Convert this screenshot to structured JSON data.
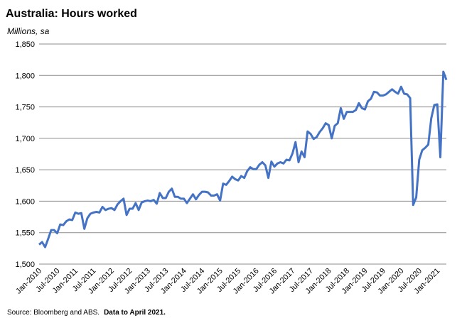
{
  "chart_data": {
    "type": "line",
    "title": "Australia: Hours worked",
    "y_label": "Millions, sa",
    "source": "Source: Bloomberg and ABS.",
    "note": "Data to April 2021.",
    "color": "#4472c4",
    "grid": true,
    "ylim": [
      1500,
      1850
    ],
    "yticks": [
      {
        "value": 1500,
        "label": "1,500"
      },
      {
        "value": 1550,
        "label": "1,550"
      },
      {
        "value": 1600,
        "label": "1,600"
      },
      {
        "value": 1650,
        "label": "1,650"
      },
      {
        "value": 1700,
        "label": "1,700"
      },
      {
        "value": 1750,
        "label": "1,750"
      },
      {
        "value": 1800,
        "label": "1,800"
      },
      {
        "value": 1850,
        "label": "1,850"
      }
    ],
    "categories": [
      "Jan-2010",
      null,
      null,
      null,
      null,
      null,
      "Jul-2010",
      null,
      null,
      null,
      null,
      null,
      "Jan-2011",
      null,
      null,
      null,
      null,
      null,
      "Jul-2011",
      null,
      null,
      null,
      null,
      null,
      "Jan-2012",
      null,
      null,
      null,
      null,
      null,
      "Jul-2012",
      null,
      null,
      null,
      null,
      null,
      "Jan-2013",
      null,
      null,
      null,
      null,
      null,
      "Jul-2013",
      null,
      null,
      null,
      null,
      null,
      "Jan-2014",
      null,
      null,
      null,
      null,
      null,
      "Jul-2014",
      null,
      null,
      null,
      null,
      null,
      "Jan-2015",
      null,
      null,
      null,
      null,
      null,
      "Jul-2015",
      null,
      null,
      null,
      null,
      null,
      "Jan-2016",
      null,
      null,
      null,
      null,
      null,
      "Jul-2016",
      null,
      null,
      null,
      null,
      null,
      "Jan-2017",
      null,
      null,
      null,
      null,
      null,
      "Jul-2017",
      null,
      null,
      null,
      null,
      null,
      "Jan-2018",
      null,
      null,
      null,
      null,
      null,
      "Jul-2018",
      null,
      null,
      null,
      null,
      null,
      "Jan-2019",
      null,
      null,
      null,
      null,
      null,
      "Jul-2019",
      null,
      null,
      null,
      null,
      null,
      "Jan-2020",
      null,
      null,
      null,
      null,
      null,
      "Jul-2020",
      null,
      null,
      null,
      null,
      null,
      "Jan-2021",
      null,
      null,
      null
    ],
    "values": [
      1531,
      1535,
      1527,
      1540,
      1554,
      1554,
      1549,
      1563,
      1562,
      1568,
      1571,
      1570,
      1582,
      1580,
      1581,
      1556,
      1573,
      1580,
      1582,
      1583,
      1582,
      1591,
      1586,
      1588,
      1589,
      1586,
      1595,
      1600,
      1604,
      1578,
      1588,
      1588,
      1597,
      1586,
      1598,
      1600,
      1601,
      1600,
      1602,
      1596,
      1613,
      1605,
      1605,
      1615,
      1620,
      1607,
      1607,
      1604,
      1604,
      1597,
      1604,
      1611,
      1603,
      1610,
      1615,
      1615,
      1614,
      1609,
      1609,
      1611,
      1601,
      1628,
      1626,
      1632,
      1639,
      1635,
      1633,
      1640,
      1637,
      1648,
      1654,
      1651,
      1651,
      1658,
      1662,
      1657,
      1637,
      1663,
      1655,
      1660,
      1662,
      1660,
      1666,
      1665,
      1676,
      1694,
      1662,
      1679,
      1670,
      1711,
      1707,
      1699,
      1702,
      1710,
      1716,
      1724,
      1721,
      1700,
      1720,
      1724,
      1748,
      1731,
      1742,
      1742,
      1742,
      1745,
      1756,
      1748,
      1746,
      1759,
      1763,
      1774,
      1773,
      1768,
      1768,
      1770,
      1774,
      1778,
      1774,
      1771,
      1782,
      1771,
      1770,
      1764,
      1594,
      1606,
      1666,
      1681,
      1685,
      1690,
      1732,
      1753,
      1754,
      1670,
      1806,
      1793
    ]
  }
}
